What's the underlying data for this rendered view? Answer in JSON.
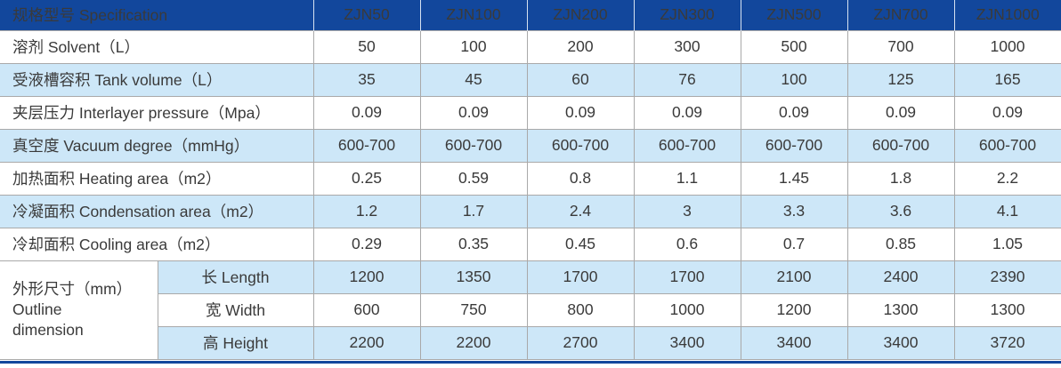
{
  "colors": {
    "header_bg": "#12479c",
    "header_text": "#ffffff",
    "alt_row_bg": "#cde7f8",
    "body_text": "#3a3a3a",
    "grid_line": "#a9a9a9",
    "bottom_bar": "#12479c"
  },
  "table": {
    "header": {
      "label": "规格型号 Specification",
      "models": [
        "ZJN50",
        "ZJN100",
        "ZJN200",
        "ZJN300",
        "ZJN500",
        "ZJN700",
        "ZJN1000"
      ]
    },
    "rows": [
      {
        "label": "溶剂 Solvent（L）",
        "values": [
          "50",
          "100",
          "200",
          "300",
          "500",
          "700",
          "1000"
        ]
      },
      {
        "label": "受液槽容积 Tank volume（L）",
        "values": [
          "35",
          "45",
          "60",
          "76",
          "100",
          "125",
          "165"
        ]
      },
      {
        "label": "夹层压力 Interlayer pressure（Mpa）",
        "values": [
          "0.09",
          "0.09",
          "0.09",
          "0.09",
          "0.09",
          "0.09",
          "0.09"
        ]
      },
      {
        "label": "真空度 Vacuum degree（mmHg）",
        "values": [
          "600-700",
          "600-700",
          "600-700",
          "600-700",
          "600-700",
          "600-700",
          "600-700"
        ]
      },
      {
        "label": "加热面积 Heating area（m2）",
        "values": [
          "0.25",
          "0.59",
          "0.8",
          "1.1",
          "1.45",
          "1.8",
          "2.2"
        ]
      },
      {
        "label": "冷凝面积 Condensation area（m2）",
        "values": [
          "1.2",
          "1.7",
          "2.4",
          "3",
          "3.3",
          "3.6",
          "4.1"
        ]
      },
      {
        "label": "冷却面积 Cooling area（m2）",
        "values": [
          "0.29",
          "0.35",
          "0.45",
          "0.6",
          "0.7",
          "0.85",
          "1.05"
        ]
      }
    ],
    "dimension_group": {
      "label_lines": [
        "外形尺寸（mm）",
        "Outline",
        "dimension"
      ],
      "rows": [
        {
          "label": "长 Length",
          "values": [
            "1200",
            "1350",
            "1700",
            "1700",
            "2100",
            "2400",
            "2390"
          ]
        },
        {
          "label": "宽 Width",
          "values": [
            "600",
            "750",
            "800",
            "1000",
            "1200",
            "1300",
            "1300"
          ]
        },
        {
          "label": "高 Height",
          "values": [
            "2200",
            "2200",
            "2700",
            "3400",
            "3400",
            "3400",
            "3720"
          ]
        }
      ]
    }
  }
}
